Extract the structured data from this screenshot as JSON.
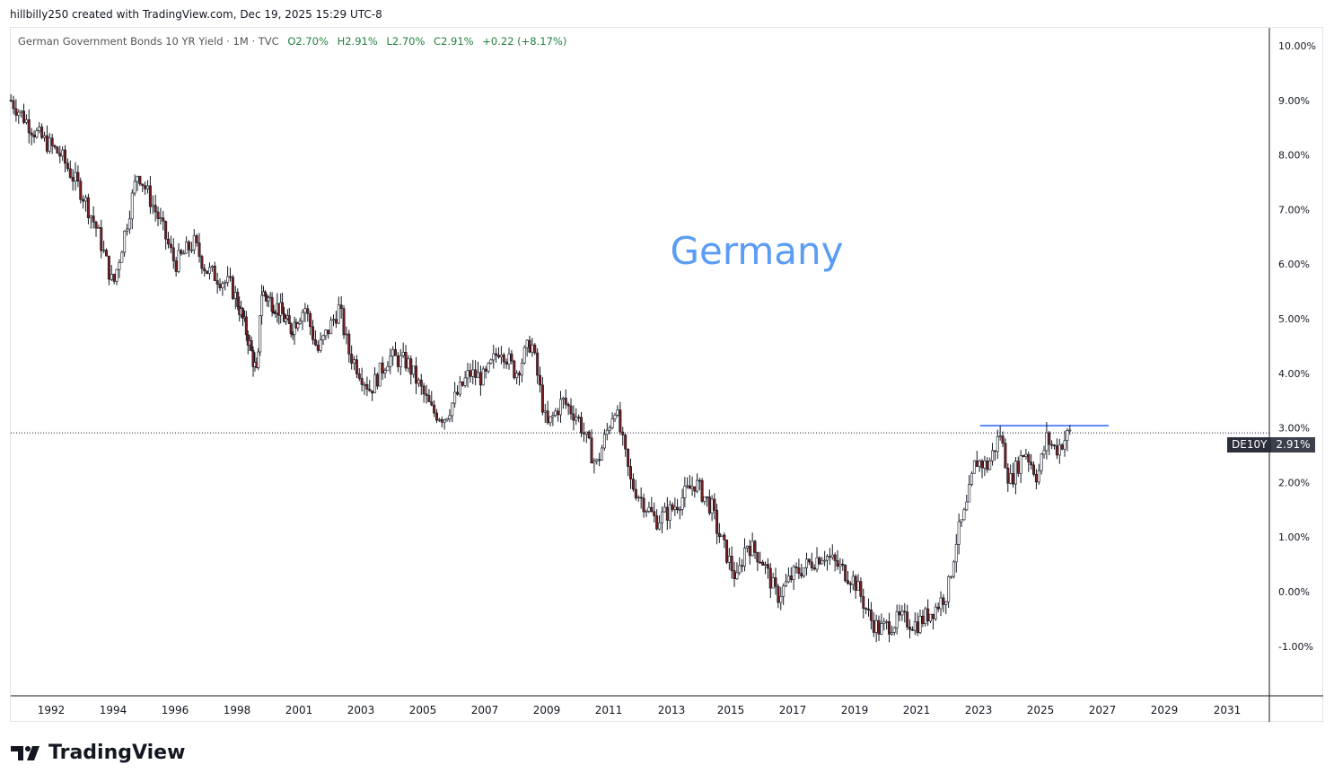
{
  "credit": "hillbilly250 created with TradingView.com, Dec 19, 2025 15:29 UTC-8",
  "legend": {
    "title": "German Government Bonds 10 YR Yield · 1M · TVC",
    "open": "O2.70%",
    "high": "H2.91%",
    "low": "L2.70%",
    "close": "C2.91%",
    "change": "+0.22 (+8.17%)"
  },
  "annotation": "Germany",
  "price_label": {
    "symbol": "DE10Y",
    "value": "2.91%"
  },
  "logo": "TradingView",
  "colors": {
    "up": "#ffffff",
    "down": "#7a1f1f",
    "border": "#131722",
    "annotation": "#5b9cf6",
    "hline": "#2962ff"
  },
  "chart_data": {
    "type": "candlestick",
    "title": "German Government Bonds 10 YR Yield",
    "y_ticks": [
      "10.00%",
      "9.00%",
      "8.00%",
      "7.00%",
      "6.00%",
      "5.00%",
      "4.00%",
      "3.00%",
      "2.00%",
      "1.00%",
      "0.00%",
      "-1.00%"
    ],
    "y_tick_values": [
      10,
      9,
      8,
      7,
      6,
      5,
      4,
      3,
      2,
      1,
      0,
      -1
    ],
    "x_ticks": [
      "1992",
      "1994",
      "1996",
      "1998",
      "2001",
      "2003",
      "2005",
      "2007",
      "2009",
      "2011",
      "2013",
      "2015",
      "2017",
      "2019",
      "2021",
      "2023",
      "2025",
      "2027",
      "2029",
      "2031"
    ],
    "ylim": [
      -1.9,
      10.4
    ],
    "last_value": 2.91,
    "horizontal_line": {
      "value": 3.04,
      "from": 2023.05,
      "to": 2027.2
    },
    "anchors": [
      [
        1990.7,
        9.0
      ],
      [
        1991.5,
        8.4
      ],
      [
        1992.3,
        8.0
      ],
      [
        1993.0,
        7.3
      ],
      [
        1993.5,
        6.6
      ],
      [
        1994.0,
        5.6
      ],
      [
        1994.8,
        7.7
      ],
      [
        1995.5,
        6.8
      ],
      [
        1996.0,
        6.0
      ],
      [
        1996.6,
        6.4
      ],
      [
        1997.0,
        5.9
      ],
      [
        1997.8,
        5.6
      ],
      [
        1998.5,
        4.7
      ],
      [
        1999.0,
        3.9
      ],
      [
        1999.15,
        5.5
      ],
      [
        2000.0,
        5.2
      ],
      [
        2000.6,
        4.8
      ],
      [
        2001.2,
        5.2
      ],
      [
        2001.6,
        4.4
      ],
      [
        2002.3,
        5.2
      ],
      [
        2002.6,
        4.4
      ],
      [
        2003.3,
        3.7
      ],
      [
        2003.9,
        4.3
      ],
      [
        2004.5,
        4.2
      ],
      [
        2005.3,
        3.3
      ],
      [
        2005.7,
        3.2
      ],
      [
        2006.5,
        4.0
      ],
      [
        2007.0,
        3.9
      ],
      [
        2007.5,
        4.5
      ],
      [
        2008.0,
        4.0
      ],
      [
        2008.5,
        4.6
      ],
      [
        2009.0,
        3.0
      ],
      [
        2009.5,
        3.5
      ],
      [
        2010.0,
        3.2
      ],
      [
        2010.6,
        2.3
      ],
      [
        2011.2,
        3.4
      ],
      [
        2011.7,
        2.0
      ],
      [
        2012.5,
        1.3
      ],
      [
        2013.0,
        1.5
      ],
      [
        2013.8,
        2.0
      ],
      [
        2014.4,
        1.5
      ],
      [
        2014.5,
        1.2
      ],
      [
        2015.2,
        0.2
      ],
      [
        2015.5,
        0.9
      ],
      [
        2016.0,
        0.6
      ],
      [
        2016.5,
        -0.1
      ],
      [
        2017.0,
        0.3
      ],
      [
        2017.5,
        0.5
      ],
      [
        2018.0,
        0.7
      ],
      [
        2018.6,
        0.4
      ],
      [
        2019.0,
        0.2
      ],
      [
        2019.5,
        -0.5
      ],
      [
        2019.8,
        -0.7
      ],
      [
        2020.5,
        -0.5
      ],
      [
        2021.0,
        -0.6
      ],
      [
        2021.6,
        -0.3
      ],
      [
        2022.0,
        0.0
      ],
      [
        2022.3,
        1.0
      ],
      [
        2022.6,
        1.5
      ],
      [
        2022.9,
        2.4
      ],
      [
        2023.3,
        2.3
      ],
      [
        2023.7,
        2.9
      ],
      [
        2024.0,
        2.0
      ],
      [
        2024.5,
        2.6
      ],
      [
        2024.9,
        2.1
      ],
      [
        2025.2,
        2.8
      ],
      [
        2025.5,
        2.6
      ],
      [
        2025.95,
        2.91
      ]
    ]
  }
}
